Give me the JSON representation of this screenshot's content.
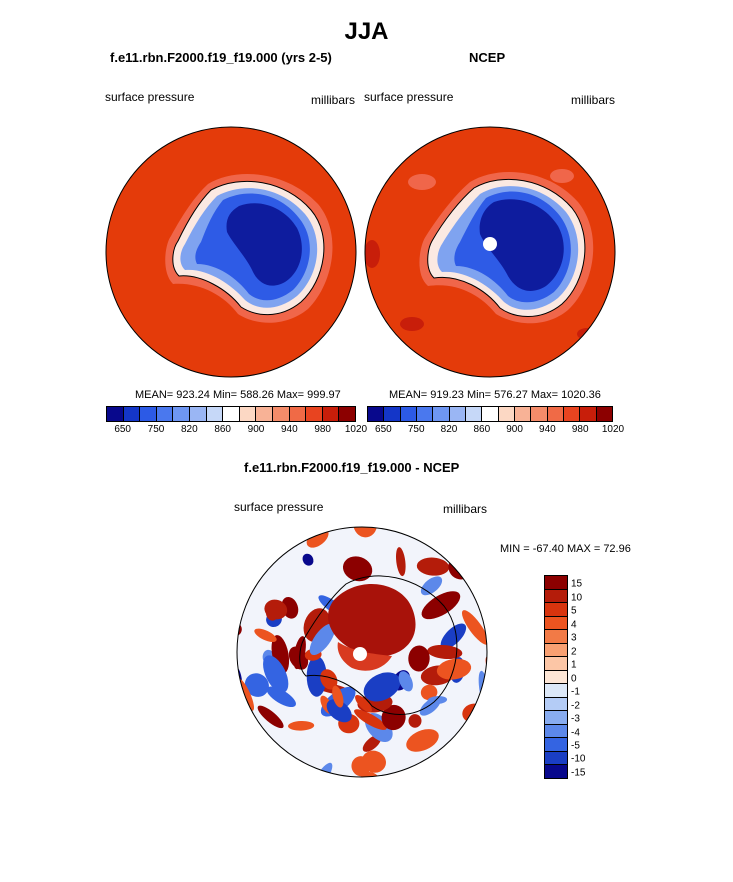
{
  "title": "JJA",
  "panels": {
    "left": {
      "title": "f.e11.rbn.F2000.f19_f19.000 (yrs 2-5)",
      "variable": "surface pressure",
      "units": "millibars",
      "stats": "MEAN= 923.24  Min= 588.26  Max= 999.97"
    },
    "right": {
      "title": "NCEP",
      "variable": "surface pressure",
      "units": "millibars",
      "stats": "MEAN= 919.23  Min= 576.27  Max= 1020.36"
    },
    "diff": {
      "title": "f.e11.rbn.F2000.f19_f19.000 - NCEP",
      "variable": "surface pressure",
      "units": "millibars",
      "stats": "MIN = -67.40 MAX =  72.96"
    }
  },
  "colorbar_abs": {
    "colors": [
      "#08088c",
      "#1436c8",
      "#2c5ae6",
      "#4a78ee",
      "#6e96f2",
      "#9ab6f4",
      "#c6d8f8",
      "#ffffff",
      "#fcd8c4",
      "#f8b296",
      "#f48c6a",
      "#f06a46",
      "#e84420",
      "#c81e0a",
      "#8c0000"
    ],
    "tick_labels": [
      "650",
      "750",
      "820",
      "860",
      "900",
      "940",
      "980",
      "1020"
    ]
  },
  "colorbar_diff": {
    "colors": [
      "#8c0000",
      "#b41c0a",
      "#d8340e",
      "#ec5420",
      "#f27a46",
      "#f8a072",
      "#fcc6a6",
      "#fde6d6",
      "#dce8f8",
      "#b4ccf6",
      "#88acf0",
      "#5c88ea",
      "#3464e2",
      "#1a3ec4",
      "#08088c"
    ],
    "tick_labels": [
      "15",
      "10",
      "5",
      "4",
      "3",
      "2",
      "1",
      "0",
      "-1",
      "-2",
      "-3",
      "-4",
      "-5",
      "-10",
      "-15"
    ]
  },
  "chart_data": [
    {
      "type": "heatmap",
      "title": "f.e11.rbn.F2000.f19_f19.000 (yrs 2-5)",
      "variable": "surface pressure",
      "units": "millibars",
      "mean": 923.24,
      "min": 588.26,
      "max": 999.97,
      "contour_levels": [
        650,
        700,
        750,
        800,
        820,
        840,
        860,
        880,
        900,
        920,
        940,
        960,
        980,
        1000,
        1020
      ]
    },
    {
      "type": "heatmap",
      "title": "NCEP",
      "variable": "surface pressure",
      "units": "millibars",
      "mean": 919.23,
      "min": 576.27,
      "max": 1020.36,
      "contour_levels": [
        650,
        700,
        750,
        800,
        820,
        840,
        860,
        880,
        900,
        920,
        940,
        960,
        980,
        1000,
        1020
      ]
    },
    {
      "type": "heatmap",
      "title": "f.e11.rbn.F2000.f19_f19.000 - NCEP",
      "variable": "surface pressure",
      "units": "millibars",
      "min": -67.4,
      "max": 72.96,
      "contour_levels": [
        -15,
        -10,
        -5,
        -4,
        -3,
        -2,
        -1,
        0,
        1,
        2,
        3,
        4,
        5,
        10,
        15
      ]
    }
  ]
}
